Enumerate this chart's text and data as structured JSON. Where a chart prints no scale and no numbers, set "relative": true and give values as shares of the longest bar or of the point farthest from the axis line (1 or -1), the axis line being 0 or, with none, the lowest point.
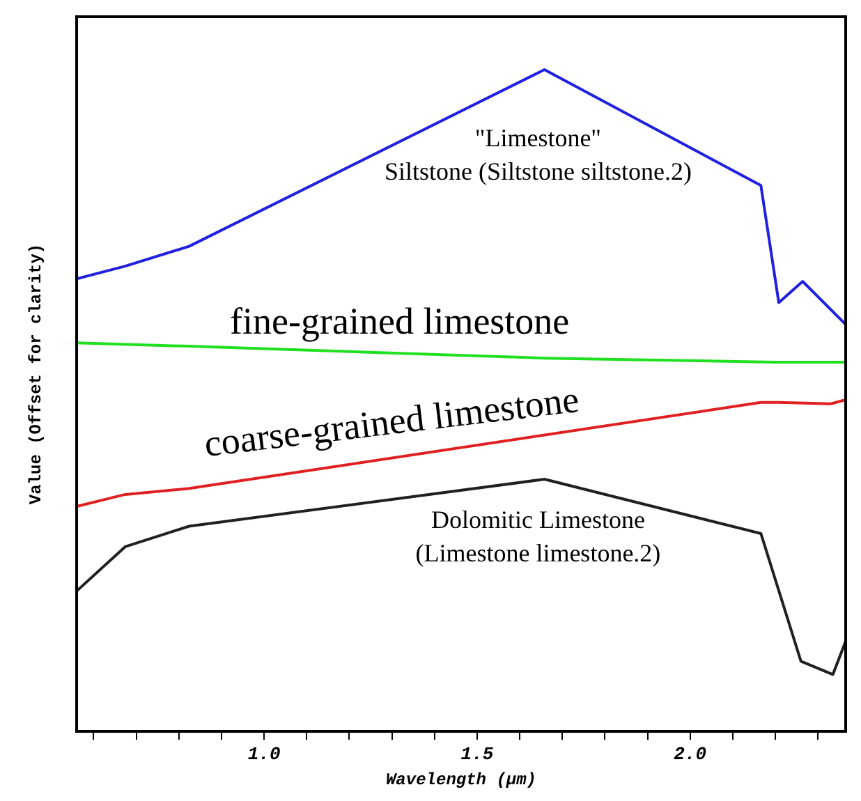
{
  "chart_data": {
    "type": "line",
    "relative": true,
    "xlabel": "Wavelength (µm)",
    "ylabel": "Value (Offset for clarity)",
    "xlim": [
      0.56,
      2.365
    ],
    "xticks": [
      {
        "value": 0.6,
        "label": null
      },
      {
        "value": 0.7,
        "label": null
      },
      {
        "value": 0.8,
        "label": null
      },
      {
        "value": 0.9,
        "label": null
      },
      {
        "value": 1.0,
        "label": "1.0"
      },
      {
        "value": 1.1,
        "label": null
      },
      {
        "value": 1.2,
        "label": null
      },
      {
        "value": 1.3,
        "label": null
      },
      {
        "value": 1.4,
        "label": null
      },
      {
        "value": 1.5,
        "label": "1.5"
      },
      {
        "value": 1.6,
        "label": null
      },
      {
        "value": 1.7,
        "label": null
      },
      {
        "value": 1.8,
        "label": null
      },
      {
        "value": 1.9,
        "label": null
      },
      {
        "value": 2.0,
        "label": "2.0"
      },
      {
        "value": 2.1,
        "label": null
      },
      {
        "value": 2.2,
        "label": null
      },
      {
        "value": 2.3,
        "label": null
      }
    ],
    "grid": false,
    "legend": false,
    "tick_labels": "x",
    "marker": "none",
    "line_style": "solid",
    "series": [
      {
        "name": "\"Limestone\"\nSiltstone (Siltstone siltstone.2)",
        "color": "#2020e0",
        "x": [
          0.56,
          0.674,
          0.824,
          1.658,
          2.166,
          2.208,
          2.264,
          2.365
        ],
        "values": [
          0.684,
          0.703,
          0.733,
          1.0,
          0.825,
          0.648,
          0.68,
          0.615
        ]
      },
      {
        "name": "fine-grained limestone",
        "color": "#20e020",
        "x": [
          0.56,
          0.824,
          1.658,
          2.2,
          2.365
        ],
        "values": [
          0.587,
          0.582,
          0.564,
          0.558,
          0.558
        ]
      },
      {
        "name": "coarse-grained limestone",
        "color": "#e02020",
        "x": [
          0.56,
          0.674,
          0.824,
          2.166,
          2.208,
          2.33,
          2.365
        ],
        "values": [
          0.34,
          0.358,
          0.367,
          0.497,
          0.497,
          0.495,
          0.501
        ]
      },
      {
        "name": "Dolomitic Limestone\n(Limestone limestone.2)",
        "color": "#202020",
        "x": [
          0.56,
          0.674,
          0.824,
          1.658,
          2.166,
          2.26,
          2.335,
          2.365
        ],
        "values": [
          0.212,
          0.279,
          0.31,
          0.381,
          0.299,
          0.106,
          0.086,
          0.136
        ]
      }
    ]
  }
}
